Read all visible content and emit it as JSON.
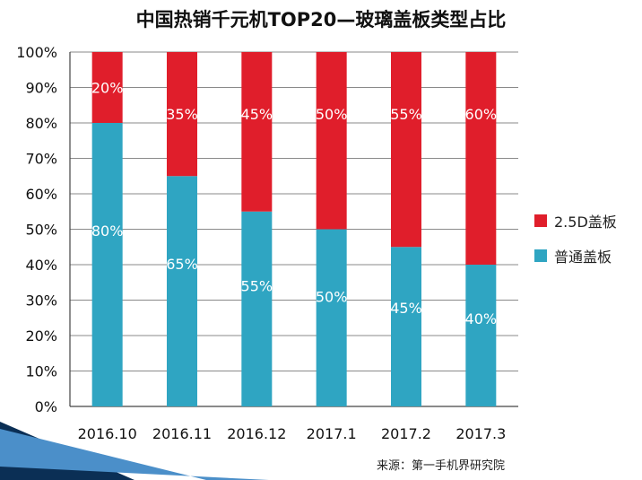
{
  "chart_data": {
    "type": "bar",
    "stacked": true,
    "normalized": true,
    "title": "中国热销千元机TOP20—玻璃盖板类型占比",
    "categories": [
      "2016.10",
      "2016.11",
      "2016.12",
      "2017.1",
      "2017.2",
      "2017.3"
    ],
    "series": [
      {
        "name": "普通盖板",
        "color": "#2fa5c2",
        "values": [
          80,
          65,
          55,
          50,
          45,
          40
        ],
        "labels": [
          "80%",
          "65%",
          "55%",
          "50%",
          "45%",
          "40%"
        ]
      },
      {
        "name": "2.5D盖板",
        "color": "#e01e2b",
        "values": [
          20,
          35,
          45,
          50,
          55,
          60
        ],
        "labels": [
          "20%",
          "35%",
          "45%",
          "50%",
          "55%",
          "60%"
        ]
      }
    ],
    "yticks": [
      "0%",
      "10%",
      "20%",
      "30%",
      "40%",
      "50%",
      "60%",
      "70%",
      "80%",
      "90%",
      "100%"
    ],
    "ylim": [
      0,
      100
    ],
    "grid": true,
    "legend_position": "right"
  },
  "legend": {
    "items": [
      {
        "label": "2.5D盖板",
        "color": "#e01e2b"
      },
      {
        "label": "普通盖板",
        "color": "#2fa5c2"
      }
    ]
  },
  "source": "来源：第一手机界研究院",
  "colors": {
    "grid": "#8a8a8a",
    "axis": "#444444",
    "accent_dark": "#0b2f55",
    "accent_light": "#4b8fc9"
  }
}
